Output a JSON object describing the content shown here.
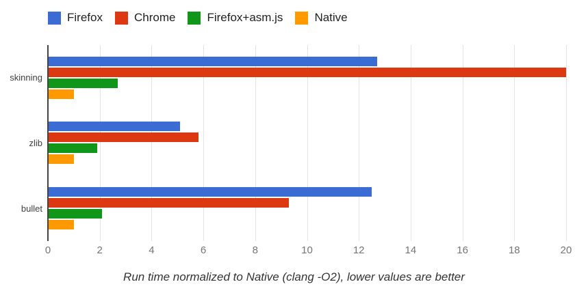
{
  "chart_data": {
    "type": "bar",
    "orientation": "horizontal",
    "caption": "Run time normalized to Native (clang -O2), lower values are better",
    "categories": [
      "skinning",
      "zlib",
      "bullet"
    ],
    "series": [
      {
        "name": "Firefox",
        "color": "#3B6CD3",
        "values": [
          12.7,
          5.1,
          12.5
        ]
      },
      {
        "name": "Chrome",
        "color": "#DC3912",
        "values": [
          20,
          5.8,
          9.3
        ]
      },
      {
        "name": "Firefox+asm.js",
        "color": "#109618",
        "values": [
          2.7,
          1.9,
          2.1
        ]
      },
      {
        "name": "Native",
        "color": "#FF9900",
        "values": [
          1.0,
          1.0,
          1.0
        ]
      }
    ],
    "xlim": [
      0,
      20
    ],
    "xticks": [
      0,
      2,
      4,
      6,
      8,
      10,
      12,
      14,
      16,
      18,
      20
    ],
    "grid": true,
    "legend_position": "top",
    "colors": {
      "background": "#ffffff",
      "zero_line": "#434343",
      "gridline": "#e4e4e4",
      "tick_label": "#757575",
      "category_label": "#3f3f3f",
      "legend_label": "#212121",
      "caption": "#333333"
    }
  }
}
